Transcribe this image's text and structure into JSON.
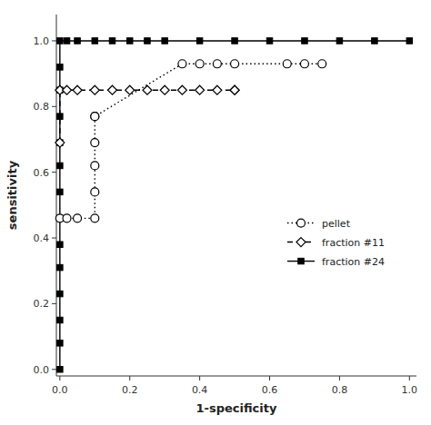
{
  "chart_data": {
    "type": "line",
    "xlabel": "1-specificity",
    "ylabel": "sensitivity",
    "xlim": [
      -0.01,
      1.02
    ],
    "ylim": [
      -0.02,
      1.08
    ],
    "xticks": [
      {
        "value": 0.0,
        "label": "0.0"
      },
      0.2,
      0.4,
      0.6,
      0.8,
      {
        "value": 1.0,
        "label": "1.0"
      }
    ],
    "yticks": [
      {
        "value": 0.0,
        "label": "0.0"
      },
      0.2,
      0.4,
      0.6,
      0.8,
      {
        "value": 1.0,
        "label": "1.0"
      }
    ],
    "grid": false,
    "legend": "lower right",
    "series": [
      {
        "name": "pellet",
        "color": "#000000",
        "marker": "circle",
        "line_style": "dotted",
        "x": [
          0.0,
          0.02,
          0.05,
          0.1,
          0.1,
          0.1,
          0.1,
          0.1,
          0.1,
          0.35,
          0.4,
          0.45,
          0.5,
          0.65,
          0.7,
          0.75
        ],
        "values": [
          0.46,
          0.46,
          0.46,
          0.46,
          0.54,
          0.62,
          0.69,
          0.77,
          0.77,
          0.93,
          0.93,
          0.93,
          0.93,
          0.93,
          0.93,
          0.93
        ]
      },
      {
        "name": "fraction #11",
        "color": "#000000",
        "marker": "diamond",
        "line_style": "dashed",
        "x": [
          0.0,
          0.0,
          0.02,
          0.05,
          0.1,
          0.15,
          0.2,
          0.25,
          0.3,
          0.35,
          0.4,
          0.45,
          0.5,
          0.5
        ],
        "values": [
          0.69,
          0.85,
          0.85,
          0.85,
          0.85,
          0.85,
          0.85,
          0.85,
          0.85,
          0.85,
          0.85,
          0.85,
          0.85,
          0.85
        ]
      },
      {
        "name": "fraction #24",
        "color": "#000000",
        "marker": "square",
        "line_style": "solid",
        "x": [
          0.0,
          0.0,
          0.0,
          0.0,
          0.0,
          0.0,
          0.0,
          0.0,
          0.0,
          0.0,
          0.0,
          0.0,
          0.0,
          0.0,
          0.02,
          0.05,
          0.1,
          0.15,
          0.2,
          0.25,
          0.3,
          0.4,
          0.5,
          0.6,
          0.7,
          0.8,
          0.9,
          1.0
        ],
        "values": [
          0.0,
          0.08,
          0.15,
          0.23,
          0.31,
          0.38,
          0.46,
          0.54,
          0.62,
          0.69,
          0.77,
          0.85,
          0.92,
          1.0,
          1.0,
          1.0,
          1.0,
          1.0,
          1.0,
          1.0,
          1.0,
          1.0,
          1.0,
          1.0,
          1.0,
          1.0,
          1.0,
          1.0
        ]
      }
    ]
  }
}
